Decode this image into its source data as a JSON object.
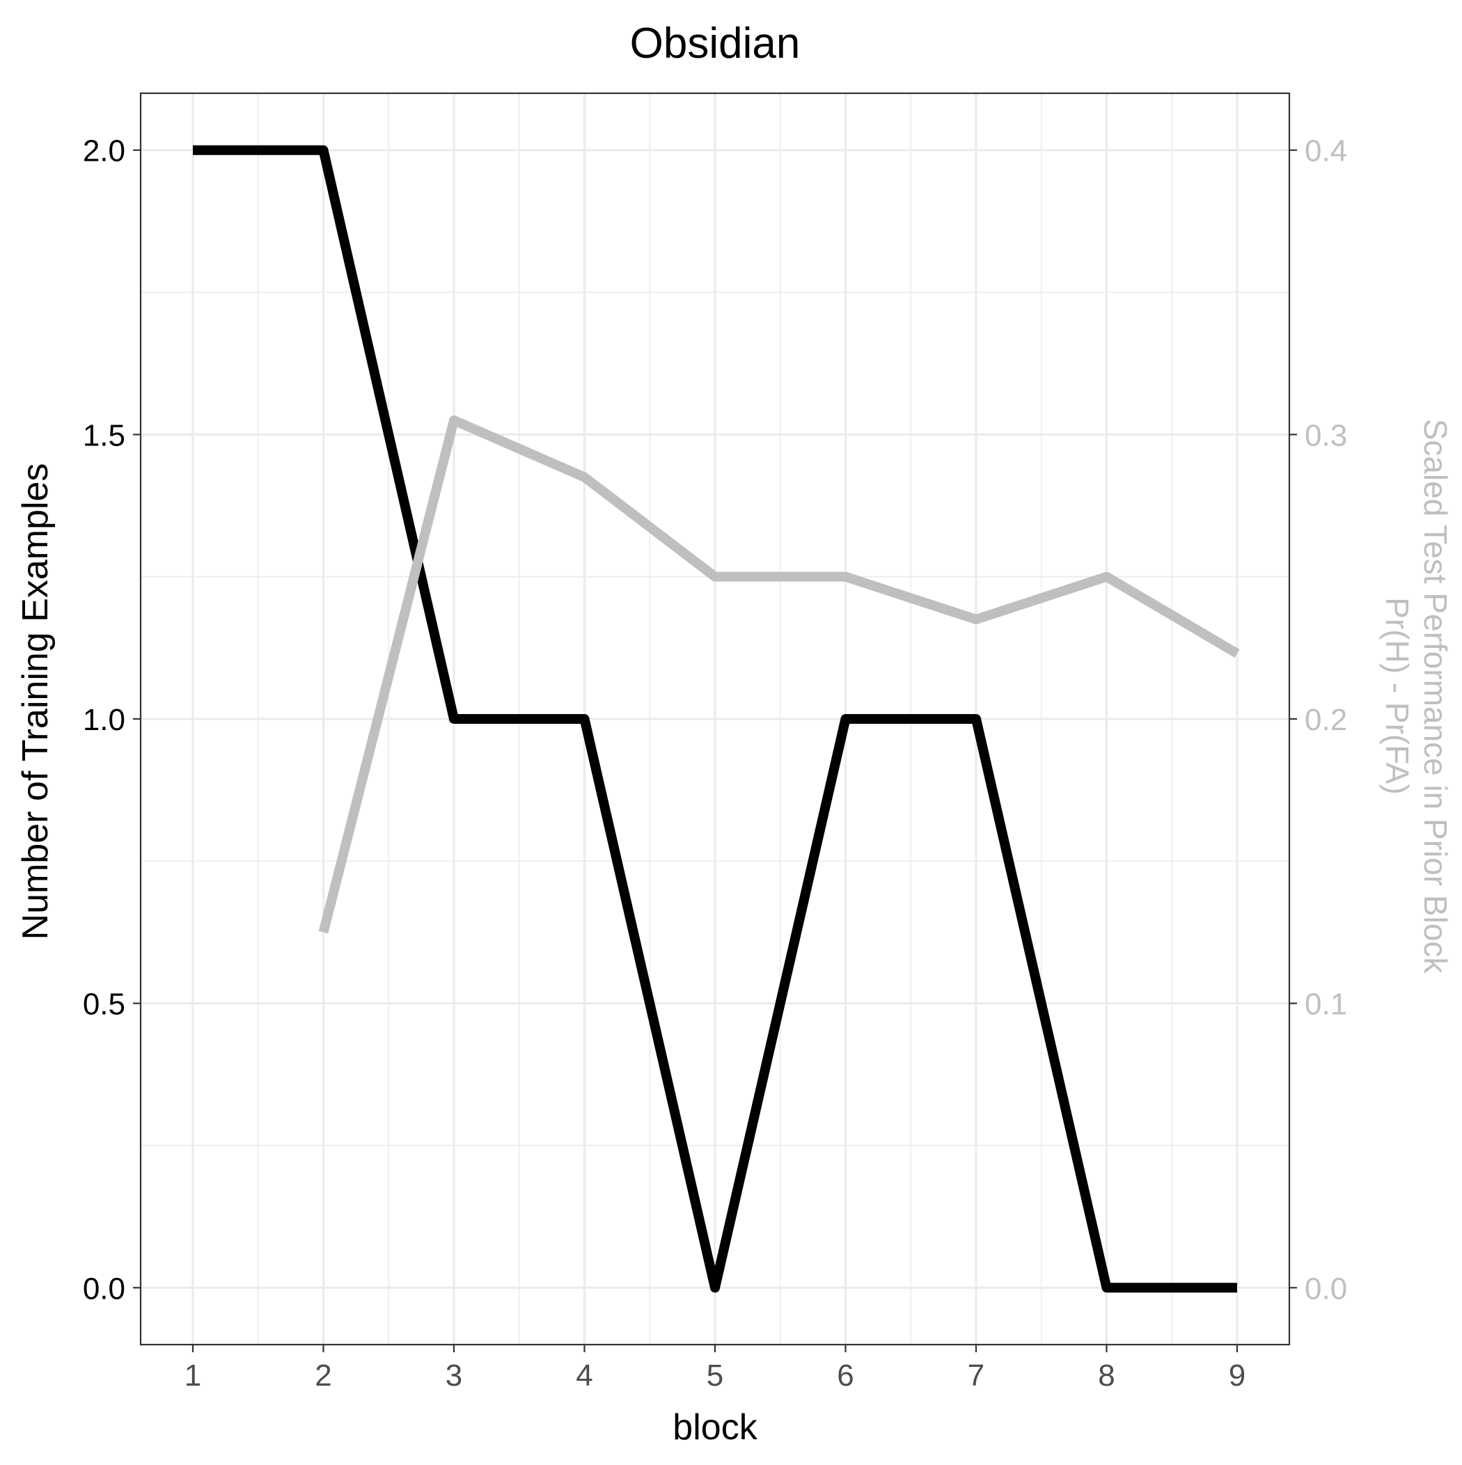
{
  "chart_data": {
    "type": "line",
    "title": "Obsidian",
    "xlabel": "block",
    "ylabel": "Number of Training Examples",
    "ylabel_right": [
      "Scaled Test Performance in Prior Block",
      "Pr(H) - Pr(FA)"
    ],
    "x": [
      1,
      2,
      3,
      4,
      5,
      6,
      7,
      8,
      9
    ],
    "xlim": [
      0.6,
      9.4
    ],
    "x_ticks": [
      "1",
      "2",
      "3",
      "4",
      "5",
      "6",
      "7",
      "8",
      "9"
    ],
    "ylim": [
      -0.1,
      2.1
    ],
    "y_ticks": [
      "0.0",
      "0.5",
      "1.0",
      "1.5",
      "2.0"
    ],
    "y_right_ticks": [
      "0.0",
      "0.1",
      "0.2",
      "0.3",
      "0.4"
    ],
    "y_right_scale": 5,
    "grid": true,
    "series": [
      {
        "axis": "left",
        "color": "#000000",
        "values": [
          2,
          2,
          1,
          1,
          0,
          1,
          1,
          0,
          0
        ]
      },
      {
        "axis": "right",
        "color": "#bfbfbf",
        "values": [
          null,
          0.125,
          0.305,
          0.285,
          0.25,
          0.25,
          0.235,
          0.25,
          0.223
        ]
      }
    ],
    "right_axis_color": "#bfbfbf"
  }
}
